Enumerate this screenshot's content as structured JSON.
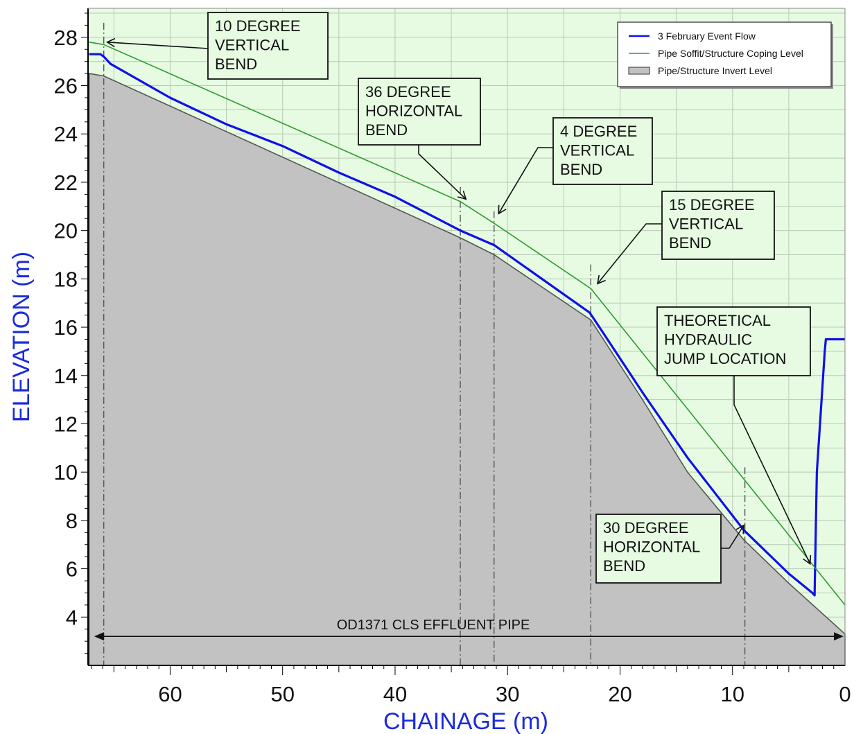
{
  "chart_data": {
    "type": "area",
    "xlabel": "CHAINAGE (m)",
    "ylabel": "ELEVATION (m)",
    "xlim": [
      67.3,
      0
    ],
    "ylim": [
      2.0,
      29.2
    ],
    "x_reversed": true,
    "x_ticks": [
      "60",
      "50",
      "40",
      "30",
      "20",
      "10",
      "0"
    ],
    "x_tick_values": [
      60,
      50,
      40,
      30,
      20,
      10,
      0
    ],
    "y_ticks": [
      "4",
      "6",
      "8",
      "10",
      "12",
      "14",
      "16",
      "18",
      "20",
      "22",
      "24",
      "26",
      "28"
    ],
    "y_tick_values": [
      4,
      6,
      8,
      10,
      12,
      14,
      16,
      18,
      20,
      22,
      24,
      26,
      28
    ],
    "grid": true,
    "legend_position": "top-right",
    "colors": {
      "background": "#e6fbe2",
      "grid": "#b9cab5",
      "flow": "#1010e8",
      "soffit": "#2e9a2e",
      "invert_fill": "#c2c2c2",
      "axis_label": "#1a2bdc"
    },
    "series": [
      {
        "name": "3 February Event Flow",
        "style": "line",
        "x": [
          67.2,
          66.2,
          65.9,
          65.3,
          60.0,
          55.0,
          50.0,
          45.0,
          40.0,
          34.2,
          31.2,
          22.7,
          22.4,
          18.0,
          14.0,
          9.0,
          5.0,
          2.9,
          2.7,
          2.7,
          2.5,
          1.8,
          1.7,
          0
        ],
        "y": [
          27.3,
          27.3,
          27.2,
          26.9,
          25.5,
          24.4,
          23.5,
          22.4,
          21.4,
          20.0,
          19.4,
          16.6,
          16.4,
          13.3,
          10.6,
          7.6,
          5.8,
          5.0,
          4.9,
          5.0,
          10.0,
          15.0,
          15.5,
          15.5
        ]
      },
      {
        "name": "Pipe Soffit/Structure Coping Level",
        "style": "line",
        "x": [
          67.2,
          65.9,
          34.2,
          31.2,
          22.6,
          0
        ],
        "y": [
          27.8,
          27.7,
          21.2,
          20.3,
          17.6,
          4.5
        ]
      },
      {
        "name": "Pipe/Structure Invert Level",
        "style": "filled-area",
        "x": [
          67.2,
          65.9,
          34.2,
          31.2,
          22.6,
          18.0,
          14.0,
          9.0,
          5.0,
          0
        ],
        "y": [
          26.5,
          26.4,
          19.7,
          19.0,
          16.3,
          13.0,
          10.0,
          7.2,
          5.4,
          3.3
        ]
      }
    ],
    "bend_markers": [
      {
        "chainage": 65.9,
        "y_top": 28.6
      },
      {
        "chainage": 34.2,
        "y_top": 21.8
      },
      {
        "chainage": 31.2,
        "y_top": 20.8
      },
      {
        "chainage": 22.6,
        "y_top": 18.6
      },
      {
        "chainage": 8.9,
        "y_top": 10.2
      }
    ],
    "annotations": [
      {
        "lines": [
          "10 DEGREE",
          "VERTICAL",
          "BEND"
        ],
        "target": [
          65.6,
          27.8
        ]
      },
      {
        "lines": [
          "36 DEGREE",
          "HORIZONTAL",
          "BEND"
        ],
        "target": [
          33.7,
          21.3
        ]
      },
      {
        "lines": [
          "4 DEGREE",
          "VERTICAL",
          "BEND"
        ],
        "target": [
          30.8,
          20.7
        ]
      },
      {
        "lines": [
          "15 DEGREE",
          "VERTICAL",
          "BEND"
        ],
        "target": [
          22.0,
          17.8
        ]
      },
      {
        "lines": [
          "THEORETICAL",
          "HYDRAULIC",
          "JUMP LOCATION"
        ],
        "target": [
          3.1,
          6.2
        ]
      },
      {
        "lines": [
          "30 DEGREE",
          "HORIZONTAL",
          "BEND"
        ],
        "target": [
          9.0,
          7.8
        ]
      }
    ],
    "dimension": {
      "label": "OD1371 CLS EFFLUENT PIPE",
      "from": 67.0,
      "to": 0,
      "y": 3.2
    }
  }
}
